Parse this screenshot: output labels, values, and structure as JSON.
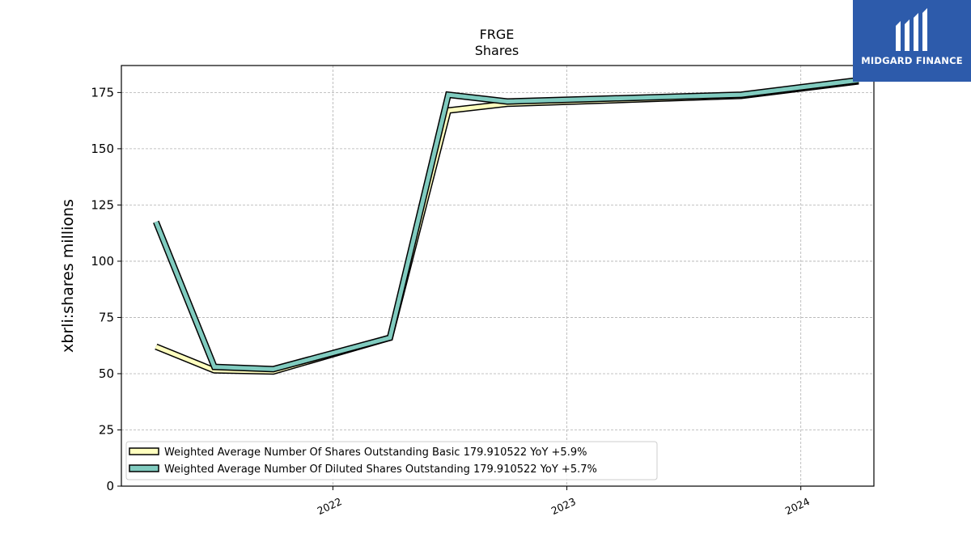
{
  "chart_data": {
    "type": "line",
    "title": "FRGE",
    "subtitle": "Shares",
    "ylabel": "xbrli:shares millions",
    "xlabel": "",
    "ylim": [
      0,
      187
    ],
    "yticks": [
      0,
      25,
      50,
      75,
      100,
      125,
      150,
      175
    ],
    "xlim": [
      "2021-02-05",
      "2024-04-24"
    ],
    "xticks": [
      {
        "label": "2022",
        "date": "2022-01-01"
      },
      {
        "label": "2023",
        "date": "2023-01-01"
      },
      {
        "label": "2024",
        "date": "2024-01-01"
      }
    ],
    "grid": true,
    "legend_position": "lower-left",
    "series": [
      {
        "name": "Weighted Average Number Of Shares Outstanding Basic  179.910522 YoY +5.9%",
        "color": "#ffffbf",
        "points": [
          {
            "x": "2021-03-31",
            "y": 62
          },
          {
            "x": "2021-06-30",
            "y": 51.5
          },
          {
            "x": "2021-09-30",
            "y": 51
          },
          {
            "x": "2022-03-31",
            "y": 66
          },
          {
            "x": "2022-06-30",
            "y": 167
          },
          {
            "x": "2022-09-30",
            "y": 170
          },
          {
            "x": "2023-09-30",
            "y": 173.5
          },
          {
            "x": "2024-03-31",
            "y": 180
          }
        ]
      },
      {
        "name": "Weighted Average Number Of Diluted Shares Outstanding  179.910522 YoY +5.7%",
        "color": "#80cbbf",
        "points": [
          {
            "x": "2021-03-31",
            "y": 117.5
          },
          {
            "x": "2021-06-30",
            "y": 53
          },
          {
            "x": "2021-09-30",
            "y": 52
          },
          {
            "x": "2022-03-31",
            "y": 66
          },
          {
            "x": "2022-06-30",
            "y": 174
          },
          {
            "x": "2022-09-30",
            "y": 171
          },
          {
            "x": "2023-09-30",
            "y": 174
          },
          {
            "x": "2024-03-31",
            "y": 180.5
          }
        ]
      }
    ]
  },
  "logo": {
    "text": "MIDGARD FINANCE",
    "background": "#2d5bab"
  }
}
